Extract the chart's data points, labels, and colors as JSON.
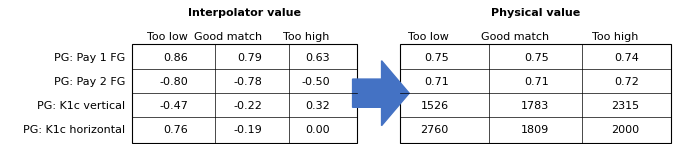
{
  "row_labels": [
    "PG: Pay 1 FG",
    "PG: Pay 2 FG",
    "PG: K1c vertical",
    "PG: K1c horizontal"
  ],
  "col_headers_interp": [
    "Too low",
    "Good match",
    "Too high"
  ],
  "col_headers_phys": [
    "Too low",
    "Good match",
    "Too high"
  ],
  "title_interp": "Interpolator value",
  "title_phys": "Physical value",
  "interp_data": [
    [
      "0.86",
      "0.79",
      "0.63"
    ],
    [
      "-0.80",
      "-0.78",
      "-0.50"
    ],
    [
      "-0.47",
      "-0.22",
      "0.32"
    ],
    [
      "0.76",
      "-0.19",
      "0.00"
    ]
  ],
  "phys_data": [
    [
      "0.75",
      "0.75",
      "0.74"
    ],
    [
      "0.71",
      "0.71",
      "0.72"
    ],
    [
      "1526",
      "1783",
      "2315"
    ],
    [
      "2760",
      "1809",
      "2000"
    ]
  ],
  "arrow_color": "#4472C4",
  "table_border_color": "#000000",
  "header_fontsize": 8,
  "data_fontsize": 8,
  "row_label_fontsize": 8,
  "bg_color": "#ffffff"
}
